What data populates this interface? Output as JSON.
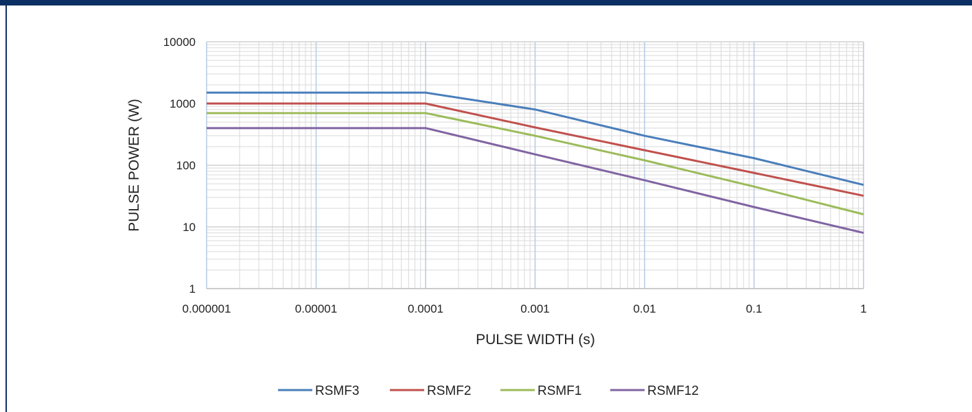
{
  "chart_data": {
    "type": "line",
    "title": "",
    "xlabel": "PULSE WIDTH (s)",
    "ylabel": "PULSE POWER (W)",
    "xscale": "log",
    "yscale": "log",
    "xlim": [
      1e-06,
      1
    ],
    "ylim": [
      1,
      10000
    ],
    "x_tick_labels": [
      "0.000001",
      "0.00001",
      "0.0001",
      "0.001",
      "0.01",
      "0.1",
      "1"
    ],
    "y_tick_labels": [
      "1",
      "10",
      "100",
      "1000",
      "10000"
    ],
    "grid": true,
    "legend_position": "bottom",
    "series": [
      {
        "name": "RSMF3",
        "color": "#4a7ebb",
        "x": [
          1e-06,
          0.0001,
          0.001,
          0.01,
          0.1,
          1
        ],
        "y": [
          1500,
          1500,
          800,
          300,
          130,
          48
        ]
      },
      {
        "name": "RSMF2",
        "color": "#c0504d",
        "x": [
          1e-06,
          0.0001,
          0.001,
          0.01,
          0.1,
          1
        ],
        "y": [
          1000,
          1000,
          410,
          175,
          75,
          32
        ]
      },
      {
        "name": "RSMF1",
        "color": "#9bbb59",
        "x": [
          1e-06,
          0.0001,
          0.001,
          0.01,
          0.1,
          1
        ],
        "y": [
          700,
          700,
          300,
          120,
          45,
          16
        ]
      },
      {
        "name": "RSMF12",
        "color": "#8064a2",
        "x": [
          1e-06,
          0.0001,
          0.001,
          0.01,
          0.1,
          1
        ],
        "y": [
          400,
          400,
          150,
          57,
          21,
          8
        ]
      }
    ]
  },
  "colors": {
    "header_bar": "#0b2f63",
    "major_grid_x": "#b9cde5",
    "grid": "#d9d9d9"
  }
}
